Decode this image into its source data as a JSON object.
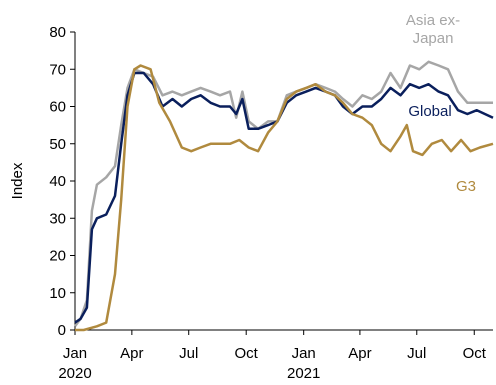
{
  "chart_data": {
    "type": "line",
    "ylabel": "Index",
    "ylim": [
      0,
      80
    ],
    "yticks": [
      0,
      10,
      20,
      30,
      40,
      50,
      60,
      70,
      80
    ],
    "xlim": [
      "2020-01-01",
      "2021-10-31"
    ],
    "xticks": [
      {
        "date": "2020-01-01",
        "label": "Jan",
        "sublabel": "2020"
      },
      {
        "date": "2020-04-01",
        "label": "Apr",
        "sublabel": ""
      },
      {
        "date": "2020-07-01",
        "label": "Jul",
        "sublabel": ""
      },
      {
        "date": "2020-10-01",
        "label": "Oct",
        "sublabel": ""
      },
      {
        "date": "2021-01-01",
        "label": "Jan",
        "sublabel": "2021"
      },
      {
        "date": "2021-04-01",
        "label": "Apr",
        "sublabel": ""
      },
      {
        "date": "2021-07-01",
        "label": "Jul",
        "sublabel": ""
      },
      {
        "date": "2021-10-01",
        "label": "Oct",
        "sublabel": ""
      }
    ],
    "grid": false,
    "series": [
      {
        "name": "Asia ex-Japan",
        "label_lines": [
          "Asia ex-",
          "Japan"
        ],
        "color": "#a6a6a6",
        "points": [
          [
            "2020-01-01",
            1
          ],
          [
            "2020-01-10",
            3
          ],
          [
            "2020-01-20",
            8
          ],
          [
            "2020-01-28",
            32
          ],
          [
            "2020-02-05",
            39
          ],
          [
            "2020-02-20",
            41
          ],
          [
            "2020-03-05",
            44
          ],
          [
            "2020-03-15",
            55
          ],
          [
            "2020-03-25",
            65
          ],
          [
            "2020-04-05",
            70
          ],
          [
            "2020-04-20",
            69
          ],
          [
            "2020-05-05",
            68
          ],
          [
            "2020-05-20",
            63
          ],
          [
            "2020-06-05",
            64
          ],
          [
            "2020-06-20",
            63
          ],
          [
            "2020-07-05",
            64
          ],
          [
            "2020-07-20",
            65
          ],
          [
            "2020-08-05",
            64
          ],
          [
            "2020-08-20",
            63
          ],
          [
            "2020-09-05",
            64
          ],
          [
            "2020-09-15",
            57
          ],
          [
            "2020-09-25",
            64
          ],
          [
            "2020-10-05",
            56
          ],
          [
            "2020-10-20",
            54
          ],
          [
            "2020-11-05",
            56
          ],
          [
            "2020-11-20",
            56
          ],
          [
            "2020-12-05",
            63
          ],
          [
            "2020-12-20",
            64
          ],
          [
            "2021-01-05",
            65
          ],
          [
            "2021-01-20",
            66
          ],
          [
            "2021-02-05",
            65
          ],
          [
            "2021-02-20",
            64
          ],
          [
            "2021-03-05",
            62
          ],
          [
            "2021-03-20",
            60
          ],
          [
            "2021-04-05",
            63
          ],
          [
            "2021-04-20",
            62
          ],
          [
            "2021-05-05",
            64
          ],
          [
            "2021-05-20",
            69
          ],
          [
            "2021-06-05",
            65
          ],
          [
            "2021-06-20",
            71
          ],
          [
            "2021-07-05",
            70
          ],
          [
            "2021-07-20",
            72
          ],
          [
            "2021-08-05",
            71
          ],
          [
            "2021-08-20",
            70
          ],
          [
            "2021-09-05",
            64
          ],
          [
            "2021-09-20",
            61
          ],
          [
            "2021-10-05",
            61
          ],
          [
            "2021-10-31",
            61
          ]
        ]
      },
      {
        "name": "Global",
        "label_lines": [
          "Global"
        ],
        "color": "#0a1f5c",
        "points": [
          [
            "2020-01-01",
            2
          ],
          [
            "2020-01-10",
            3
          ],
          [
            "2020-01-20",
            6
          ],
          [
            "2020-01-28",
            27
          ],
          [
            "2020-02-05",
            30
          ],
          [
            "2020-02-20",
            31
          ],
          [
            "2020-03-05",
            36
          ],
          [
            "2020-03-15",
            50
          ],
          [
            "2020-03-25",
            63
          ],
          [
            "2020-04-05",
            69
          ],
          [
            "2020-04-20",
            69
          ],
          [
            "2020-05-05",
            66
          ],
          [
            "2020-05-20",
            60
          ],
          [
            "2020-06-05",
            62
          ],
          [
            "2020-06-20",
            60
          ],
          [
            "2020-07-05",
            62
          ],
          [
            "2020-07-20",
            63
          ],
          [
            "2020-08-05",
            61
          ],
          [
            "2020-08-20",
            60
          ],
          [
            "2020-09-05",
            60
          ],
          [
            "2020-09-15",
            58
          ],
          [
            "2020-09-25",
            62
          ],
          [
            "2020-10-05",
            54
          ],
          [
            "2020-10-20",
            54
          ],
          [
            "2020-11-05",
            55
          ],
          [
            "2020-11-20",
            56
          ],
          [
            "2020-12-05",
            61
          ],
          [
            "2020-12-20",
            63
          ],
          [
            "2021-01-05",
            64
          ],
          [
            "2021-01-20",
            65
          ],
          [
            "2021-02-05",
            64
          ],
          [
            "2021-02-20",
            63
          ],
          [
            "2021-03-05",
            60
          ],
          [
            "2021-03-20",
            58
          ],
          [
            "2021-04-05",
            60
          ],
          [
            "2021-04-20",
            60
          ],
          [
            "2021-05-05",
            62
          ],
          [
            "2021-05-20",
            65
          ],
          [
            "2021-06-05",
            63
          ],
          [
            "2021-06-20",
            66
          ],
          [
            "2021-07-05",
            65
          ],
          [
            "2021-07-20",
            66
          ],
          [
            "2021-08-05",
            64
          ],
          [
            "2021-08-20",
            63
          ],
          [
            "2021-09-05",
            59
          ],
          [
            "2021-09-20",
            58
          ],
          [
            "2021-10-05",
            59
          ],
          [
            "2021-10-31",
            57
          ]
        ]
      },
      {
        "name": "G3",
        "label_lines": [
          "G3"
        ],
        "color": "#b08a3e",
        "points": [
          [
            "2020-01-01",
            0
          ],
          [
            "2020-01-15",
            0
          ],
          [
            "2020-02-05",
            1
          ],
          [
            "2020-02-20",
            2
          ],
          [
            "2020-03-05",
            15
          ],
          [
            "2020-03-15",
            35
          ],
          [
            "2020-03-25",
            60
          ],
          [
            "2020-04-05",
            70
          ],
          [
            "2020-04-15",
            71
          ],
          [
            "2020-05-01",
            70
          ],
          [
            "2020-05-15",
            61
          ],
          [
            "2020-06-01",
            56
          ],
          [
            "2020-06-20",
            49
          ],
          [
            "2020-07-05",
            48
          ],
          [
            "2020-07-20",
            49
          ],
          [
            "2020-08-05",
            50
          ],
          [
            "2020-08-20",
            50
          ],
          [
            "2020-09-05",
            50
          ],
          [
            "2020-09-20",
            51
          ],
          [
            "2020-10-05",
            49
          ],
          [
            "2020-10-20",
            48
          ],
          [
            "2020-11-05",
            53
          ],
          [
            "2020-11-20",
            56
          ],
          [
            "2020-12-05",
            62
          ],
          [
            "2020-12-20",
            64
          ],
          [
            "2021-01-05",
            65
          ],
          [
            "2021-01-20",
            66
          ],
          [
            "2021-02-05",
            64
          ],
          [
            "2021-02-20",
            63
          ],
          [
            "2021-03-05",
            61
          ],
          [
            "2021-03-20",
            58
          ],
          [
            "2021-04-05",
            57
          ],
          [
            "2021-04-20",
            55
          ],
          [
            "2021-05-05",
            50
          ],
          [
            "2021-05-20",
            48
          ],
          [
            "2021-06-05",
            52
          ],
          [
            "2021-06-15",
            55
          ],
          [
            "2021-06-25",
            48
          ],
          [
            "2021-07-10",
            47
          ],
          [
            "2021-07-25",
            50
          ],
          [
            "2021-08-10",
            51
          ],
          [
            "2021-08-25",
            48
          ],
          [
            "2021-09-10",
            51
          ],
          [
            "2021-09-25",
            48
          ],
          [
            "2021-10-10",
            49
          ],
          [
            "2021-10-31",
            50
          ]
        ]
      }
    ]
  }
}
